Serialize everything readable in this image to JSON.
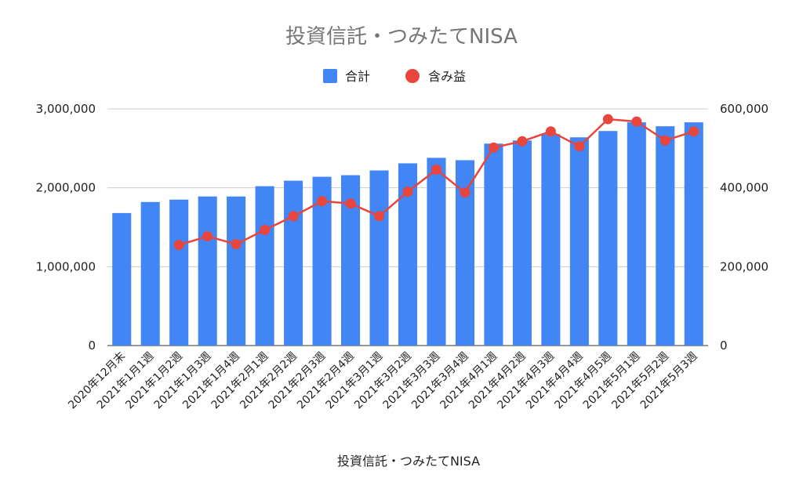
{
  "chart_data": {
    "type": "bar+line",
    "title": "投資信託・つみたてNISA",
    "xlabel": "投資信託・つみたてNISA",
    "categories": [
      "2020年12月末",
      "2021年1月1週",
      "2021年1月2週",
      "2021年1月3週",
      "2021年1月4週",
      "2021年2月1週",
      "2021年2月2週",
      "2021年2月3週",
      "2021年2月4週",
      "2021年3月1週",
      "2021年3月2週",
      "2021年3月3週",
      "2021年3月4週",
      "2021年4月1週",
      "2021年4月2週",
      "2021年4月3週",
      "2021年4月4週",
      "2021年4月5週",
      "2021年5月1週",
      "2021年5月2週",
      "2021年5月3週"
    ],
    "series": [
      {
        "name": "合計",
        "type": "bar",
        "axis": "left",
        "color": "#4285F4",
        "values": [
          1680000,
          1820000,
          1850000,
          1890000,
          1890000,
          2020000,
          2090000,
          2140000,
          2160000,
          2220000,
          2310000,
          2380000,
          2350000,
          2560000,
          2600000,
          2680000,
          2640000,
          2720000,
          2830000,
          2780000,
          2830000
        ]
      },
      {
        "name": "含み益",
        "type": "line",
        "axis": "right",
        "color": "#E8453C",
        "values": [
          null,
          null,
          255000,
          277000,
          257000,
          293000,
          328000,
          366000,
          360000,
          328000,
          390000,
          446000,
          388000,
          502000,
          518000,
          543000,
          505000,
          574000,
          568000,
          520000,
          543000
        ]
      }
    ],
    "y_left": {
      "min": 0,
      "max": 3000000,
      "ticks": [
        0,
        1000000,
        2000000,
        3000000
      ],
      "tick_labels": [
        "0",
        "1,000,000",
        "2,000,000",
        "3,000,000"
      ]
    },
    "y_right": {
      "min": 0,
      "max": 600000,
      "ticks": [
        0,
        200000,
        400000,
        600000
      ],
      "tick_labels": [
        "0",
        "200,000",
        "400,000",
        "600,000"
      ]
    },
    "grid": true,
    "legend_position": "top"
  }
}
